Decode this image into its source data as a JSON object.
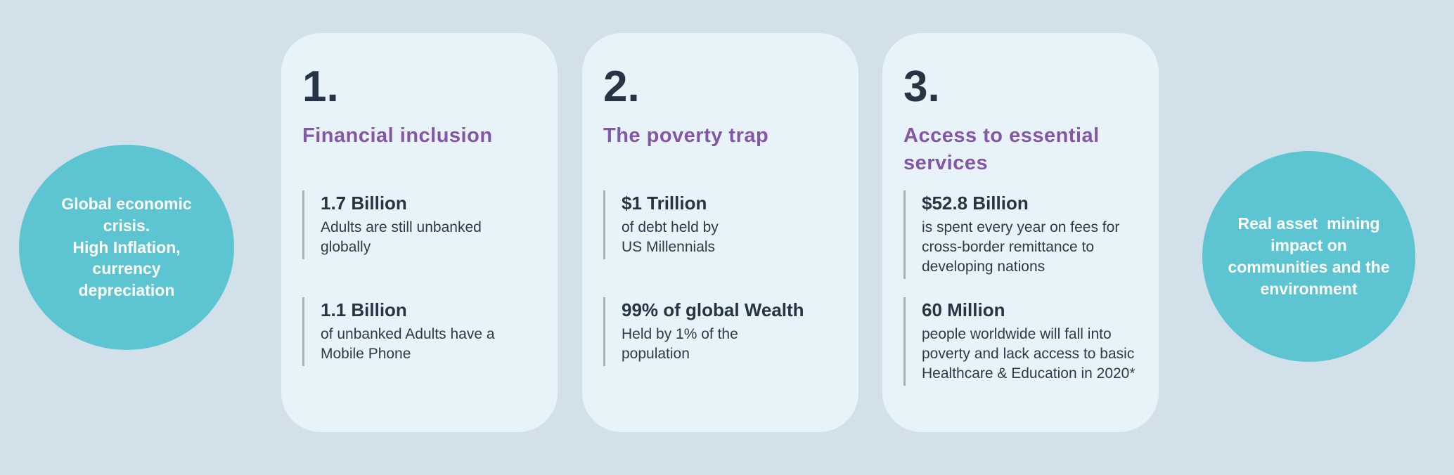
{
  "page": {
    "background_color": "#d2e0ea"
  },
  "colors": {
    "card_background": "#e8f2f9",
    "circle_teal": "#5cc5d1",
    "heading_purple": "#8257a4",
    "dark_text": "#253543",
    "body_text": "#2c3b47",
    "stat_rule_gray": "#a6b2bb",
    "circle_text_white": "#ffffff"
  },
  "side_circles": {
    "left": {
      "text": "Global economic\ncrisis.\nHigh Inflation,\ncurrency\ndepreciation",
      "background_color": "#5cc5d1"
    },
    "right": {
      "text": "Real asset  mining\nimpact on\ncommunities and the\nenvironment",
      "background_color": "#5cc5d1"
    }
  },
  "cards": [
    {
      "number": "1.",
      "title": "Financial inclusion",
      "stats": [
        {
          "value": "1.7 Billion",
          "description": "Adults are still unbanked\nglobally"
        },
        {
          "value": "1.1 Billion",
          "description": "of unbanked Adults have a\nMobile Phone"
        }
      ]
    },
    {
      "number": "2.",
      "title": "The poverty trap",
      "stats": [
        {
          "value": "$1 Trillion",
          "description": "of debt held by\nUS Millennials"
        },
        {
          "value": "99% of global Wealth",
          "description": "Held by 1% of the\npopulation"
        }
      ]
    },
    {
      "number": "3.",
      "title": "Access to essential\nservices",
      "stats": [
        {
          "value": "$52.8 Billion",
          "description": "is spent every year on fees for\ncross-border remittance to\ndeveloping nations"
        },
        {
          "value": "60 Million",
          "description": "people worldwide will fall into\npoverty and lack access to basic\nHealthcare & Education in 2020*"
        }
      ]
    }
  ]
}
